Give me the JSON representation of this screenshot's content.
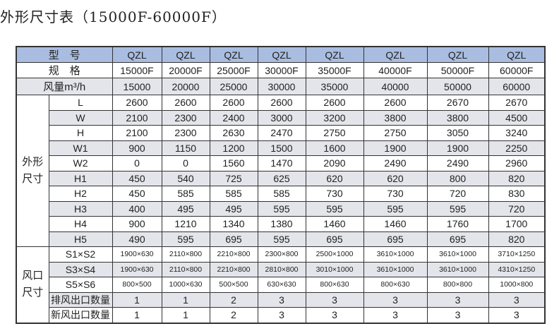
{
  "title": "外形尺寸表（15000F-60000F）",
  "header": {
    "model_label": "型　号",
    "spec_label": "规　格",
    "flow_label": "风量m³/h",
    "models": [
      "QZL",
      "QZL",
      "QZL",
      "QZL",
      "QZL",
      "QZL",
      "QZL",
      "QZL"
    ],
    "specs": [
      "15000F",
      "20000F",
      "25000F",
      "30000F",
      "35000F",
      "40000F",
      "50000F",
      "60000F"
    ],
    "flows": [
      "15000",
      "20000",
      "25000",
      "30000",
      "35000",
      "40000",
      "50000",
      "60000"
    ]
  },
  "shape_group": {
    "label_line1": "外形",
    "label_line2": "尺寸",
    "rows": [
      {
        "name": "L",
        "values": [
          "2600",
          "2600",
          "2600",
          "2600",
          "2600",
          "2600",
          "2670",
          "2670"
        ]
      },
      {
        "name": "W",
        "values": [
          "2100",
          "2300",
          "2400",
          "3000",
          "3200",
          "3800",
          "3800",
          "4500"
        ]
      },
      {
        "name": "H",
        "values": [
          "2100",
          "2300",
          "2630",
          "2470",
          "2750",
          "2750",
          "3050",
          "3240"
        ]
      },
      {
        "name": "W1",
        "values": [
          "900",
          "1150",
          "1200",
          "1500",
          "1600",
          "1900",
          "1900",
          "2250"
        ]
      },
      {
        "name": "W2",
        "values": [
          "0",
          "0",
          "1560",
          "1470",
          "2090",
          "2490",
          "2490",
          "2960"
        ]
      },
      {
        "name": "H1",
        "values": [
          "450",
          "540",
          "725",
          "625",
          "620",
          "620",
          "800",
          "820"
        ]
      },
      {
        "name": "H2",
        "values": [
          "450",
          "585",
          "585",
          "585",
          "730",
          "730",
          "720",
          "830"
        ]
      },
      {
        "name": "H3",
        "values": [
          "400",
          "495",
          "495",
          "595",
          "595",
          "595",
          "595",
          "720"
        ]
      },
      {
        "name": "H4",
        "values": [
          "900",
          "1210",
          "1340",
          "1380",
          "1460",
          "1460",
          "1760",
          "1700"
        ]
      },
      {
        "name": "H5",
        "values": [
          "490",
          "595",
          "695",
          "595",
          "695",
          "695",
          "695",
          "820"
        ]
      }
    ]
  },
  "outlet_group": {
    "label_line1": "风口",
    "label_line2": "尺寸",
    "rows": [
      {
        "name": "S1×S2",
        "values": [
          "1900×630",
          "2110×800",
          "2210×800",
          "2300×800",
          "2500×1000",
          "3610×1000",
          "3610×1000",
          "3710×1250"
        ]
      },
      {
        "name": "S3×S4",
        "values": [
          "1900×630",
          "2110×800",
          "2210×800",
          "2810×800",
          "3010×1000",
          "3610×1000",
          "3610×1000",
          "4310×1250"
        ]
      },
      {
        "name": "S5×S6",
        "values": [
          "800×500",
          "1000×630",
          "500×500",
          "630×630",
          "800×630",
          "800×630",
          "800×800",
          "1000×800"
        ]
      },
      {
        "name": "排风出口数量",
        "values": [
          "1",
          "1",
          "2",
          "3",
          "3",
          "3",
          "3",
          "3"
        ]
      },
      {
        "name": "新风出口数量",
        "values": [
          "1",
          "1",
          "2",
          "3",
          "3",
          "3",
          "3",
          "3"
        ]
      }
    ]
  }
}
